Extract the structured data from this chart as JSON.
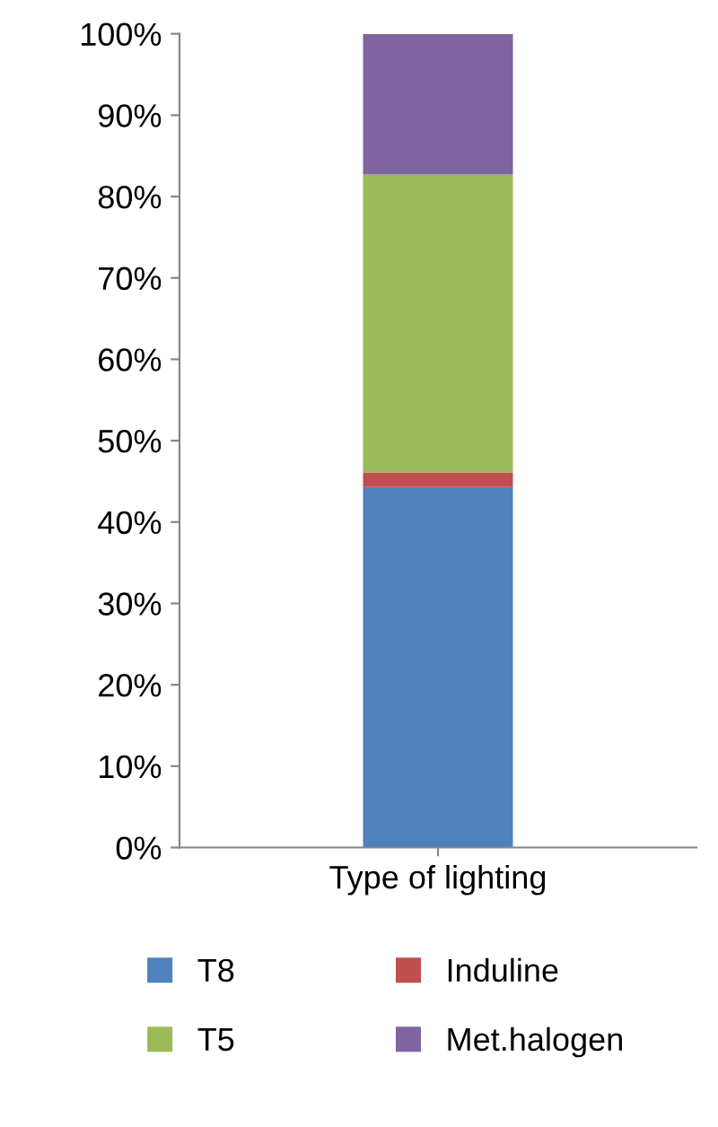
{
  "chart_data": {
    "type": "bar",
    "stacked": true,
    "categories": [
      "Type of lighting"
    ],
    "series": [
      {
        "name": "T8",
        "color": "#4f81bd",
        "values": [
          44.3
        ]
      },
      {
        "name": "Induline",
        "color": "#c0504d",
        "values": [
          1.8
        ]
      },
      {
        "name": "T5",
        "color": "#9bbb59",
        "values": [
          36.6
        ]
      },
      {
        "name": "Met.halogen",
        "color": "#8064a2",
        "values": [
          17.3
        ]
      }
    ],
    "ylim": [
      0,
      100
    ],
    "yticks": [
      {
        "value": 0,
        "label": "0%"
      },
      {
        "value": 10,
        "label": "10%"
      },
      {
        "value": 20,
        "label": "20%"
      },
      {
        "value": 30,
        "label": "30%"
      },
      {
        "value": 40,
        "label": "40%"
      },
      {
        "value": 50,
        "label": "50%"
      },
      {
        "value": 60,
        "label": "60%"
      },
      {
        "value": 70,
        "label": "70%"
      },
      {
        "value": 80,
        "label": "80%"
      },
      {
        "value": 90,
        "label": "90%"
      },
      {
        "value": 100,
        "label": "100%"
      }
    ],
    "grid": false,
    "legend": "bottom"
  }
}
